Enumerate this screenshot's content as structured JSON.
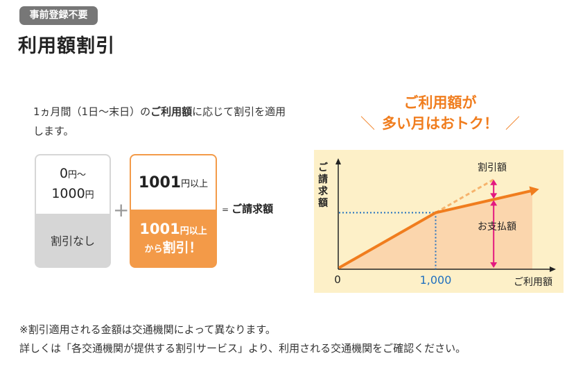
{
  "badge": "事前登録不要",
  "title": "利用額割引",
  "description": {
    "part1": "1ヵ月間（1日〜末日）の",
    "bold": "ご利用額",
    "part2": "に応じて割引を適用します。"
  },
  "tier_free": {
    "range_start": "0",
    "range_start_unit": "円〜",
    "range_end": "1000",
    "range_end_unit": "円",
    "label": "割引なし"
  },
  "plus_sign": "+",
  "tier_discount": {
    "top_value": "1001",
    "top_unit": "円以上",
    "bottom_value": "1001",
    "bottom_unit": "円以上",
    "bottom_label_prefix": "から",
    "bottom_label_main": "割引！"
  },
  "equals": {
    "sign": "=",
    "label": "ご請求額"
  },
  "headline": {
    "line1": "ご利用額が",
    "line2": "多い月はおトク！",
    "slash_left": "＼",
    "slash_right": "／"
  },
  "chart_data": {
    "type": "line",
    "ylabel": "ご請求額",
    "xlabel": "ご利用額",
    "origin_label": "0",
    "x_tick_labels": [
      "1,000"
    ],
    "breakpoint_x": 1000,
    "annotations": {
      "discount": "割引額",
      "payment": "お支払額"
    },
    "series": [
      {
        "style": "solid",
        "x": [
          0,
          1000,
          2000
        ],
        "y": [
          0,
          1000,
          1400
        ]
      },
      {
        "style": "dashed",
        "x": [
          1000,
          1600
        ],
        "y": [
          1000,
          1600
        ]
      }
    ],
    "colors": {
      "line": "#f07d1e",
      "dashed": "#f6b36d",
      "fill": "#fbd6ad",
      "background": "#fdf0c8",
      "dotted": "#1f6fbf",
      "arrow": "#e3197f"
    }
  },
  "footnote": {
    "line1": "※割引適用される金額は交通機関によって異なります。",
    "line2": "詳しくは「各交通機関が提供する割引サービス」より、利用される交通機関をご確認ください。"
  }
}
